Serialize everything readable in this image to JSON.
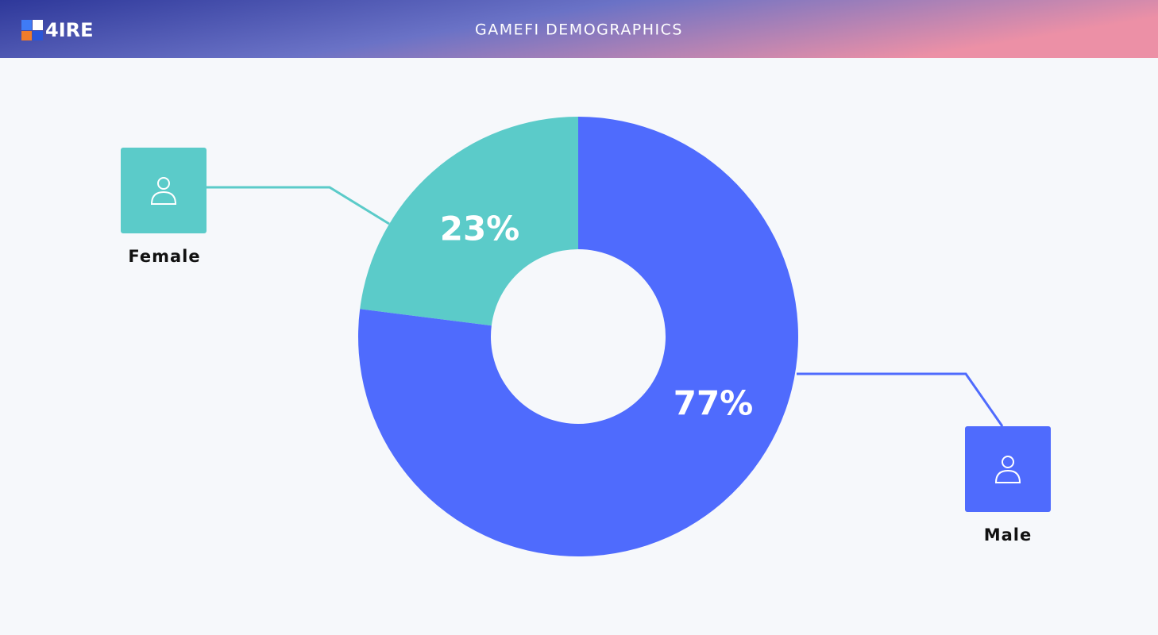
{
  "brand": "4IRE",
  "chart_data": {
    "type": "donut",
    "title": "GAMEFI DEMOGRAPHICS",
    "categories": [
      "Female",
      "Male"
    ],
    "values": [
      23,
      77
    ],
    "value_labels": [
      "23%",
      "77%"
    ],
    "colors": [
      "#5bcbc9",
      "#4f6bfd"
    ]
  }
}
